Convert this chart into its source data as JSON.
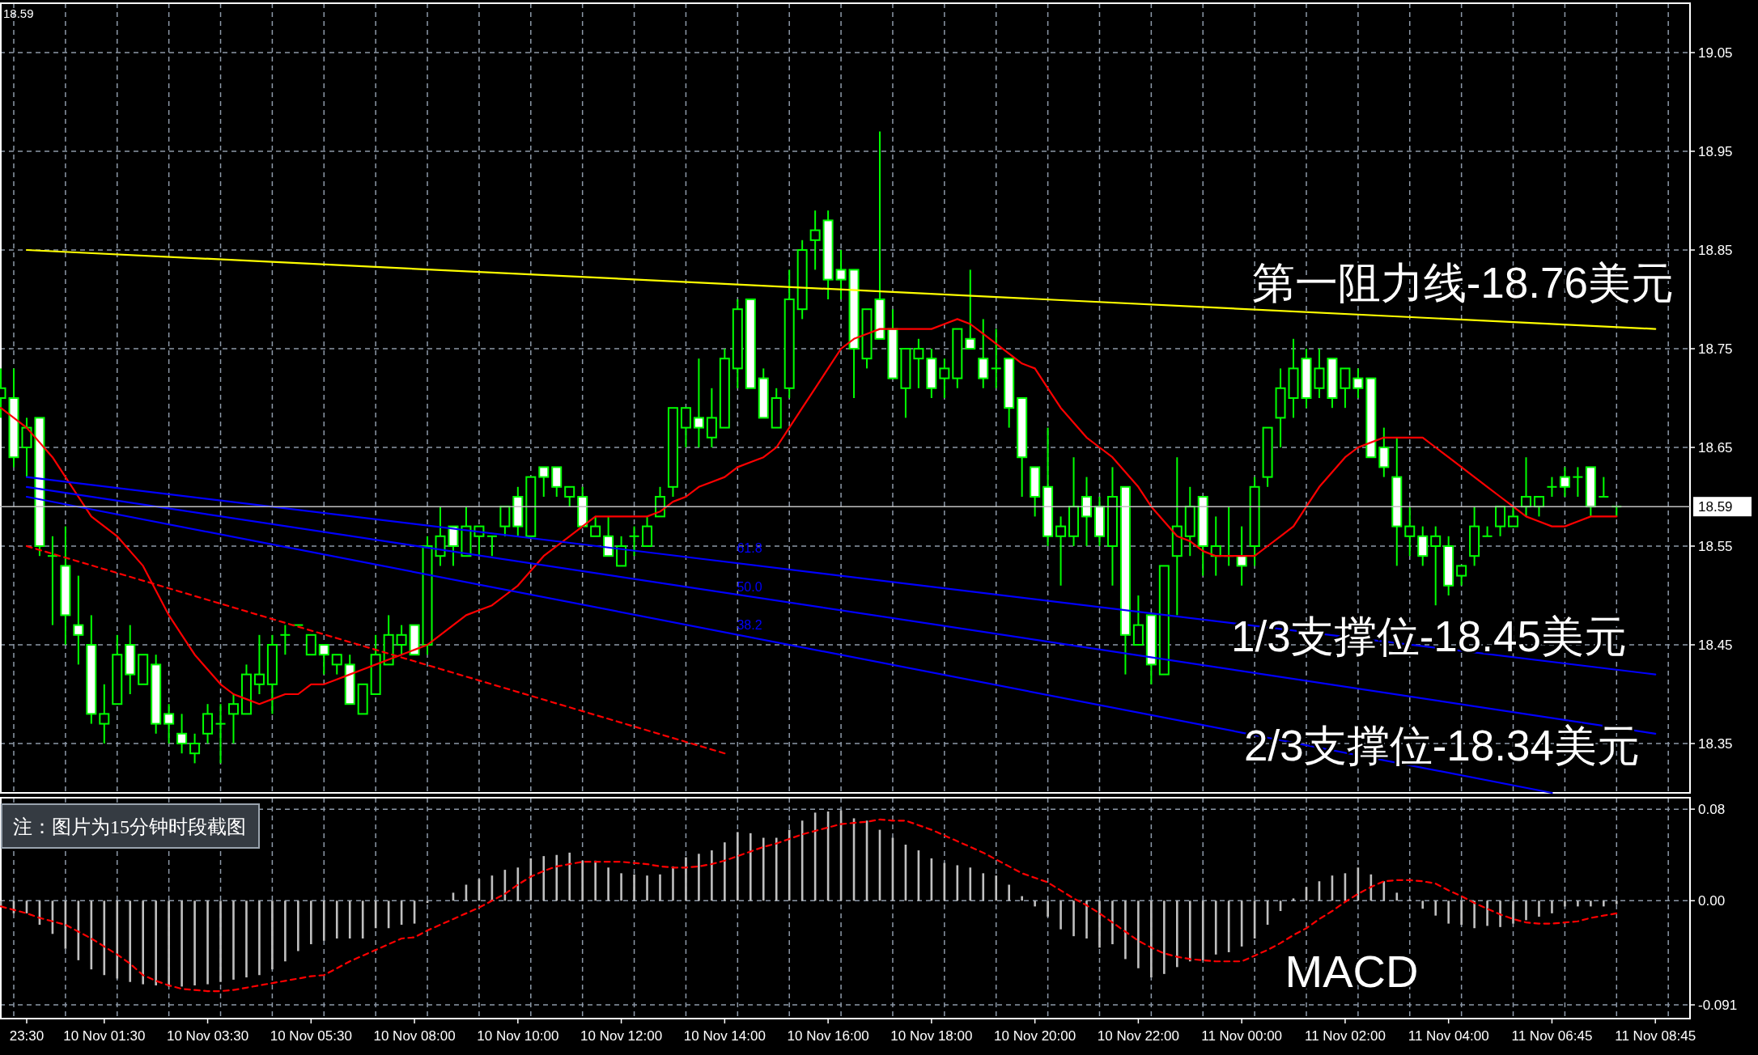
{
  "chart_data": [
    {
      "type": "candlestick",
      "color": "#00ff00",
      "categories": [
        null,
        null,
        "23:30",
        null,
        null,
        null,
        null,
        null,
        "10 Nov 01:30",
        null,
        null,
        null,
        null,
        null,
        null,
        null,
        "10 Nov 03:30",
        null,
        null,
        null,
        null,
        null,
        null,
        null,
        "10 Nov 05:30",
        null,
        null,
        null,
        null,
        null,
        null,
        null,
        "10 Nov 08:00",
        null,
        null,
        null,
        null,
        null,
        null,
        null,
        "10 Nov 10:00",
        null,
        null,
        null,
        null,
        null,
        null,
        null,
        "10 Nov 12:00",
        null,
        null,
        null,
        null,
        null,
        null,
        null,
        "10 Nov 14:00",
        null,
        null,
        null,
        null,
        null,
        null,
        null,
        "10 Nov 16:00",
        null,
        null,
        null,
        null,
        null,
        null,
        null,
        "10 Nov 18:00",
        null,
        null,
        null,
        null,
        null,
        null,
        null,
        "10 Nov 20:00",
        null,
        null,
        null,
        null,
        null,
        null,
        null,
        "10 Nov 22:00",
        null,
        null,
        null,
        null,
        null,
        null,
        null,
        "11 Nov 00:00",
        null,
        null,
        null,
        null,
        null,
        null,
        null,
        "11 Nov 02:00",
        null,
        null,
        null,
        null,
        null,
        null,
        null,
        "11 Nov 04:00",
        null,
        null,
        null,
        null,
        null,
        null,
        null,
        "11 Nov 06:45",
        null,
        null,
        null,
        null,
        null,
        null,
        null,
        "11 Nov 08:45",
        null,
        null
      ],
      "ohlc": [
        [
          18.7,
          18.73,
          18.68,
          18.71
        ],
        [
          18.7,
          18.73,
          18.63,
          18.64
        ],
        [
          18.65,
          18.68,
          18.62,
          18.67
        ],
        [
          18.68,
          18.68,
          18.54,
          18.55
        ],
        [
          18.54,
          18.56,
          18.47,
          18.54
        ],
        [
          18.53,
          18.57,
          18.45,
          18.48
        ],
        [
          18.47,
          18.52,
          18.43,
          18.46
        ],
        [
          18.45,
          18.48,
          18.37,
          18.38
        ],
        [
          18.37,
          18.41,
          18.35,
          18.38
        ],
        [
          18.39,
          18.46,
          18.39,
          18.44
        ],
        [
          18.45,
          18.47,
          18.4,
          18.42
        ],
        [
          18.41,
          18.44,
          18.41,
          18.44
        ],
        [
          18.43,
          18.44,
          18.36,
          18.37
        ],
        [
          18.38,
          18.39,
          18.35,
          18.37
        ],
        [
          18.36,
          18.38,
          18.34,
          18.35
        ],
        [
          18.34,
          18.36,
          18.33,
          18.35
        ],
        [
          18.36,
          18.39,
          18.35,
          18.38
        ],
        [
          18.37,
          18.39,
          18.33,
          18.37
        ],
        [
          18.38,
          18.4,
          18.35,
          18.39
        ],
        [
          18.38,
          18.43,
          18.38,
          18.42
        ],
        [
          18.41,
          18.46,
          18.4,
          18.42
        ],
        [
          18.41,
          18.46,
          18.38,
          18.45
        ],
        [
          18.46,
          18.47,
          18.44,
          18.46
        ],
        [
          18.47,
          18.47,
          18.47,
          18.47
        ],
        [
          18.44,
          18.46,
          18.44,
          18.46
        ],
        [
          18.45,
          18.45,
          18.42,
          18.44
        ],
        [
          18.43,
          18.44,
          18.42,
          18.44
        ],
        [
          18.43,
          18.44,
          18.39,
          18.39
        ],
        [
          18.38,
          18.41,
          18.38,
          18.41
        ],
        [
          18.4,
          18.46,
          18.4,
          18.44
        ],
        [
          18.43,
          18.48,
          18.43,
          18.46
        ],
        [
          18.45,
          18.47,
          18.44,
          18.46
        ],
        [
          18.47,
          18.47,
          18.44,
          18.44
        ],
        [
          18.45,
          18.56,
          18.44,
          18.55
        ],
        [
          18.54,
          18.59,
          18.53,
          18.56
        ],
        [
          18.57,
          18.57,
          18.53,
          18.55
        ],
        [
          18.54,
          18.59,
          18.54,
          18.57
        ],
        [
          18.56,
          18.57,
          18.54,
          18.57
        ],
        [
          18.56,
          18.56,
          18.54,
          18.56
        ],
        [
          18.57,
          18.59,
          18.56,
          18.59
        ],
        [
          18.6,
          18.61,
          18.56,
          18.57
        ],
        [
          18.56,
          18.62,
          18.56,
          18.62
        ],
        [
          18.63,
          18.63,
          18.6,
          18.62
        ],
        [
          18.63,
          18.63,
          18.6,
          18.61
        ],
        [
          18.6,
          18.61,
          18.59,
          18.61
        ],
        [
          18.6,
          18.61,
          18.57,
          18.57
        ],
        [
          18.56,
          18.58,
          18.56,
          18.57
        ],
        [
          18.56,
          18.58,
          18.54,
          18.54
        ],
        [
          18.53,
          18.56,
          18.53,
          18.55
        ],
        [
          18.56,
          18.57,
          18.54,
          18.56
        ],
        [
          18.55,
          18.58,
          18.55,
          18.57
        ],
        [
          18.58,
          18.61,
          18.58,
          18.6
        ],
        [
          18.61,
          18.69,
          18.6,
          18.69
        ],
        [
          18.67,
          18.69,
          18.65,
          18.69
        ],
        [
          18.68,
          18.74,
          18.65,
          18.67
        ],
        [
          18.66,
          18.71,
          18.65,
          18.68
        ],
        [
          18.67,
          18.75,
          18.67,
          18.74
        ],
        [
          18.73,
          18.8,
          18.71,
          18.79
        ],
        [
          18.8,
          18.8,
          18.71,
          18.71
        ],
        [
          18.72,
          18.73,
          18.68,
          18.68
        ],
        [
          18.67,
          18.71,
          18.67,
          18.7
        ],
        [
          18.71,
          18.83,
          18.7,
          18.8
        ],
        [
          18.79,
          18.86,
          18.78,
          18.85
        ],
        [
          18.86,
          18.89,
          18.83,
          18.87
        ],
        [
          18.88,
          18.89,
          18.8,
          18.82
        ],
        [
          18.83,
          18.85,
          18.8,
          18.82
        ],
        [
          18.83,
          18.83,
          18.7,
          18.75
        ],
        [
          18.74,
          18.79,
          18.73,
          18.79
        ],
        [
          18.8,
          18.97,
          18.76,
          18.76
        ],
        [
          18.77,
          18.79,
          18.72,
          18.72
        ],
        [
          18.71,
          18.75,
          18.68,
          18.75
        ],
        [
          18.74,
          18.76,
          18.71,
          18.75
        ],
        [
          18.74,
          18.75,
          18.7,
          18.71
        ],
        [
          18.72,
          18.74,
          18.7,
          18.73
        ],
        [
          18.72,
          18.77,
          18.71,
          18.77
        ],
        [
          18.76,
          18.83,
          18.75,
          18.75
        ],
        [
          18.74,
          18.78,
          18.71,
          18.72
        ],
        [
          18.73,
          18.77,
          18.71,
          18.73
        ],
        [
          18.74,
          18.74,
          18.67,
          18.69
        ],
        [
          18.7,
          18.7,
          18.6,
          18.64
        ],
        [
          18.63,
          18.63,
          18.58,
          18.6
        ],
        [
          18.61,
          18.67,
          18.55,
          18.56
        ],
        [
          18.56,
          18.58,
          18.51,
          18.57
        ],
        [
          18.56,
          18.64,
          18.55,
          18.59
        ],
        [
          18.6,
          18.62,
          18.55,
          18.58
        ],
        [
          18.59,
          18.6,
          18.55,
          18.56
        ],
        [
          18.55,
          18.63,
          18.51,
          18.6
        ],
        [
          18.61,
          18.61,
          18.42,
          18.46
        ],
        [
          18.45,
          18.5,
          18.45,
          18.47
        ],
        [
          18.48,
          18.48,
          18.41,
          18.43
        ],
        [
          18.42,
          18.53,
          18.42,
          18.53
        ],
        [
          18.54,
          18.64,
          18.48,
          18.57
        ],
        [
          18.56,
          18.61,
          18.54,
          18.59
        ],
        [
          18.6,
          18.6,
          18.52,
          18.55
        ],
        [
          18.54,
          18.58,
          18.52,
          18.55
        ],
        [
          18.54,
          18.59,
          18.53,
          18.54
        ],
        [
          18.54,
          18.57,
          18.51,
          18.53
        ],
        [
          18.55,
          18.62,
          18.53,
          18.61
        ],
        [
          18.62,
          18.67,
          18.61,
          18.67
        ],
        [
          18.68,
          18.73,
          18.65,
          18.71
        ],
        [
          18.7,
          18.76,
          18.68,
          18.73
        ],
        [
          18.74,
          18.75,
          18.69,
          18.7
        ],
        [
          18.71,
          18.75,
          18.7,
          18.73
        ],
        [
          18.74,
          18.74,
          18.69,
          18.7
        ],
        [
          18.71,
          18.73,
          18.69,
          18.73
        ],
        [
          18.72,
          18.73,
          18.7,
          18.71
        ],
        [
          18.72,
          18.72,
          18.64,
          18.64
        ],
        [
          18.65,
          18.67,
          18.62,
          18.63
        ],
        [
          18.62,
          18.66,
          18.53,
          18.57
        ],
        [
          18.56,
          18.59,
          18.54,
          18.57
        ],
        [
          18.56,
          18.57,
          18.53,
          18.54
        ],
        [
          18.55,
          18.57,
          18.49,
          18.56
        ],
        [
          18.55,
          18.56,
          18.5,
          18.51
        ],
        [
          18.52,
          18.53,
          18.51,
          18.53
        ],
        [
          18.54,
          18.59,
          18.53,
          18.57
        ],
        [
          18.56,
          18.57,
          18.56,
          18.56
        ],
        [
          18.57,
          18.59,
          18.56,
          18.59
        ],
        [
          18.57,
          18.59,
          18.57,
          18.58
        ],
        [
          18.59,
          18.64,
          18.58,
          18.6
        ],
        [
          18.59,
          18.6,
          18.58,
          18.6
        ],
        [
          18.61,
          18.62,
          18.6,
          18.61
        ],
        [
          18.62,
          18.63,
          18.6,
          18.61
        ],
        [
          18.62,
          18.63,
          18.6,
          18.62
        ],
        [
          18.63,
          18.63,
          18.58,
          18.59
        ],
        [
          18.6,
          18.62,
          18.6,
          18.6
        ],
        [
          18.59,
          18.59,
          18.58,
          18.59
        ],
        null,
        null,
        null,
        null,
        null
      ],
      "series": [
        {
          "type": "line",
          "color": "#ff0000",
          "values": [
            18.69,
            18.68,
            18.67,
            18.655,
            18.64,
            18.62,
            18.6,
            18.58,
            18.57,
            18.56,
            18.545,
            18.53,
            18.505,
            18.48,
            18.46,
            18.44,
            18.425,
            18.41,
            18.4,
            18.395,
            18.39,
            18.395,
            18.4,
            18.4,
            18.41,
            18.41,
            18.415,
            18.42,
            18.425,
            18.43,
            18.435,
            18.44,
            18.445,
            18.45,
            18.46,
            18.47,
            18.48,
            18.485,
            18.49,
            18.5,
            18.51,
            18.525,
            18.54,
            18.55,
            18.56,
            18.57,
            18.58,
            18.58,
            18.58,
            18.58,
            18.58,
            18.585,
            18.595,
            18.6,
            18.61,
            18.615,
            18.62,
            18.63,
            18.635,
            18.64,
            18.65,
            18.67,
            18.69,
            18.71,
            18.73,
            18.75,
            18.76,
            18.765,
            18.77,
            18.77,
            18.77,
            18.77,
            18.77,
            18.775,
            18.78,
            18.775,
            18.765,
            18.755,
            18.745,
            18.735,
            18.73,
            18.71,
            18.69,
            18.675,
            18.66,
            18.65,
            18.64,
            18.625,
            18.61,
            18.59,
            18.575,
            18.56,
            18.555,
            18.545,
            18.54,
            18.54,
            18.54,
            18.54,
            18.55,
            18.56,
            18.57,
            18.59,
            18.61,
            18.625,
            18.64,
            18.65,
            18.655,
            18.66,
            18.66,
            18.66,
            18.66,
            18.65,
            18.64,
            18.63,
            18.62,
            18.61,
            18.6,
            18.59,
            18.58,
            18.575,
            18.57,
            18.57,
            18.575,
            18.58,
            18.58,
            18.58,
            null,
            null,
            null,
            null,
            null
          ]
        },
        {
          "type": "line",
          "color": "#ffff00",
          "x": [
            "23:30",
            "11 Nov 08:45"
          ],
          "values": [
            18.85,
            18.77
          ]
        },
        {
          "type": "line",
          "color": "#0000ff",
          "x": [
            "23:30",
            "11 Nov 08:45"
          ],
          "values": [
            18.62,
            18.42
          ]
        },
        {
          "type": "line",
          "color": "#0000ff",
          "x": [
            "23:30",
            "11 Nov 08:45"
          ],
          "values": [
            18.61,
            18.36
          ]
        },
        {
          "type": "line",
          "color": "#0000ff",
          "x": [
            "23:30",
            "11 Nov 06:45"
          ],
          "values": [
            18.6,
            18.3
          ]
        },
        {
          "type": "line",
          "color": "#ff0000",
          "line_style": "dashed",
          "x": [
            "23:30",
            "10 Nov 14:00"
          ],
          "values": [
            18.55,
            18.34
          ]
        }
      ],
      "ylim": [
        18.3,
        19.1
      ],
      "yticks": [
        19.05,
        18.95,
        18.85,
        18.75,
        18.65,
        18.55,
        18.45,
        18.35
      ],
      "grid": true,
      "tick_labels": "y",
      "ref_lines": [
        {
          "axis": "y",
          "value": 18.59,
          "label": "18.59",
          "color": "#c0c0c0"
        }
      ],
      "annotations": [
        "18.59",
        "第一阻力线-18.76美元",
        "1/3支撑位-18.45美元",
        "2/3支撑位-18.34美元",
        "61.8",
        "50.0",
        "38.2"
      ]
    },
    {
      "type": "bar",
      "categories": [
        null,
        null,
        "23:30",
        null,
        null,
        null,
        null,
        null,
        "10 Nov 01:30",
        null,
        null,
        null,
        null,
        null,
        null,
        null,
        "10 Nov 03:30",
        null,
        null,
        null,
        null,
        null,
        null,
        null,
        "10 Nov 05:30",
        null,
        null,
        null,
        null,
        null,
        null,
        null,
        "10 Nov 08:00",
        null,
        null,
        null,
        null,
        null,
        null,
        null,
        "10 Nov 10:00",
        null,
        null,
        null,
        null,
        null,
        null,
        null,
        "10 Nov 12:00",
        null,
        null,
        null,
        null,
        null,
        null,
        null,
        "10 Nov 14:00",
        null,
        null,
        null,
        null,
        null,
        null,
        null,
        "10 Nov 16:00",
        null,
        null,
        null,
        null,
        null,
        null,
        null,
        "10 Nov 18:00",
        null,
        null,
        null,
        null,
        null,
        null,
        null,
        "10 Nov 20:00",
        null,
        null,
        null,
        null,
        null,
        null,
        null,
        "10 Nov 22:00",
        null,
        null,
        null,
        null,
        null,
        null,
        null,
        "11 Nov 00:00",
        null,
        null,
        null,
        null,
        null,
        null,
        null,
        "11 Nov 02:00",
        null,
        null,
        null,
        null,
        null,
        null,
        null,
        "11 Nov 04:00",
        null,
        null,
        null,
        null,
        null,
        null,
        null,
        "11 Nov 06:45",
        null,
        null,
        null,
        null,
        null,
        null,
        null,
        "11 Nov 08:45",
        null,
        null
      ],
      "series": [
        {
          "type": "bar",
          "color": "#c0c0c0",
          "values": [
            -0.005,
            -0.011,
            -0.011,
            -0.021,
            -0.029,
            -0.042,
            -0.052,
            -0.06,
            -0.065,
            -0.068,
            -0.071,
            -0.073,
            -0.074,
            -0.075,
            -0.075,
            -0.074,
            -0.073,
            -0.071,
            -0.069,
            -0.067,
            -0.065,
            -0.06,
            -0.053,
            -0.044,
            -0.038,
            -0.035,
            -0.033,
            -0.033,
            -0.033,
            -0.024,
            -0.024,
            -0.021,
            -0.02,
            -0.002,
            null,
            0.007,
            0.014,
            0.019,
            0.022,
            0.027,
            0.029,
            0.037,
            0.039,
            0.04,
            0.042,
            0.035,
            0.035,
            0.029,
            0.024,
            0.023,
            0.022,
            0.023,
            0.03,
            0.038,
            0.041,
            0.044,
            0.051,
            0.06,
            0.059,
            0.055,
            0.055,
            0.062,
            0.07,
            0.077,
            0.078,
            0.079,
            0.072,
            0.07,
            0.062,
            0.055,
            0.049,
            0.044,
            0.037,
            0.033,
            0.031,
            0.029,
            0.024,
            0.022,
            0.014,
            0.004,
            -0.005,
            -0.014,
            -0.025,
            -0.031,
            -0.033,
            -0.041,
            -0.038,
            -0.051,
            -0.059,
            -0.067,
            -0.064,
            -0.058,
            -0.053,
            -0.052,
            -0.047,
            -0.045,
            -0.04,
            -0.033,
            -0.021,
            -0.009,
            0.002,
            0.012,
            0.017,
            0.022,
            0.024,
            0.029,
            0.023,
            0.017,
            0.007,
            0.001,
            -0.007,
            -0.013,
            -0.02,
            -0.021,
            -0.024,
            -0.022,
            -0.023,
            -0.02,
            -0.017,
            -0.014,
            -0.011,
            -0.005,
            -0.005,
            -0.005,
            -0.005,
            -0.003,
            null,
            null,
            null,
            null,
            null
          ]
        },
        {
          "type": "line",
          "color": "#ff0000",
          "line_style": "dashed",
          "values": [
            -0.005,
            -0.008,
            -0.011,
            -0.015,
            -0.018,
            -0.021,
            -0.027,
            -0.033,
            -0.04,
            -0.047,
            -0.055,
            -0.065,
            -0.07,
            -0.074,
            -0.077,
            -0.078,
            -0.079,
            -0.079,
            -0.078,
            -0.076,
            -0.074,
            -0.072,
            -0.07,
            -0.068,
            -0.066,
            -0.065,
            -0.059,
            -0.053,
            -0.048,
            -0.043,
            -0.038,
            -0.033,
            -0.032,
            -0.026,
            -0.021,
            -0.016,
            -0.011,
            -0.006,
            0.0,
            0.006,
            0.014,
            0.021,
            0.026,
            0.03,
            0.032,
            0.034,
            0.034,
            0.034,
            0.034,
            0.033,
            0.032,
            0.03,
            0.029,
            0.029,
            0.03,
            0.032,
            0.035,
            0.039,
            0.043,
            0.047,
            0.05,
            0.054,
            0.058,
            0.061,
            0.064,
            0.067,
            0.068,
            0.069,
            0.071,
            0.07,
            0.07,
            0.066,
            0.062,
            0.057,
            0.052,
            0.047,
            0.042,
            0.036,
            0.03,
            0.024,
            0.02,
            0.016,
            0.009,
            0.002,
            -0.004,
            -0.011,
            -0.019,
            -0.027,
            -0.035,
            -0.041,
            -0.046,
            -0.049,
            -0.051,
            -0.052,
            -0.053,
            -0.053,
            -0.053,
            -0.048,
            -0.043,
            -0.037,
            -0.03,
            -0.024,
            -0.016,
            -0.009,
            -0.001,
            0.006,
            0.012,
            0.017,
            0.018,
            0.018,
            0.017,
            0.015,
            0.009,
            0.004,
            -0.002,
            -0.007,
            -0.012,
            -0.016,
            -0.019,
            -0.02,
            -0.02,
            -0.019,
            -0.018,
            -0.015,
            -0.013,
            -0.011,
            null,
            null,
            null,
            null,
            null
          ]
        }
      ],
      "ylim": [
        -0.103,
        0.09
      ],
      "yticks": [
        0.08,
        {
          "value": 0,
          "label": "0.00"
        },
        -0.091
      ],
      "grid": true,
      "annotations": [
        "MACD",
        "注：图片为15分钟时段截图"
      ]
    }
  ]
}
